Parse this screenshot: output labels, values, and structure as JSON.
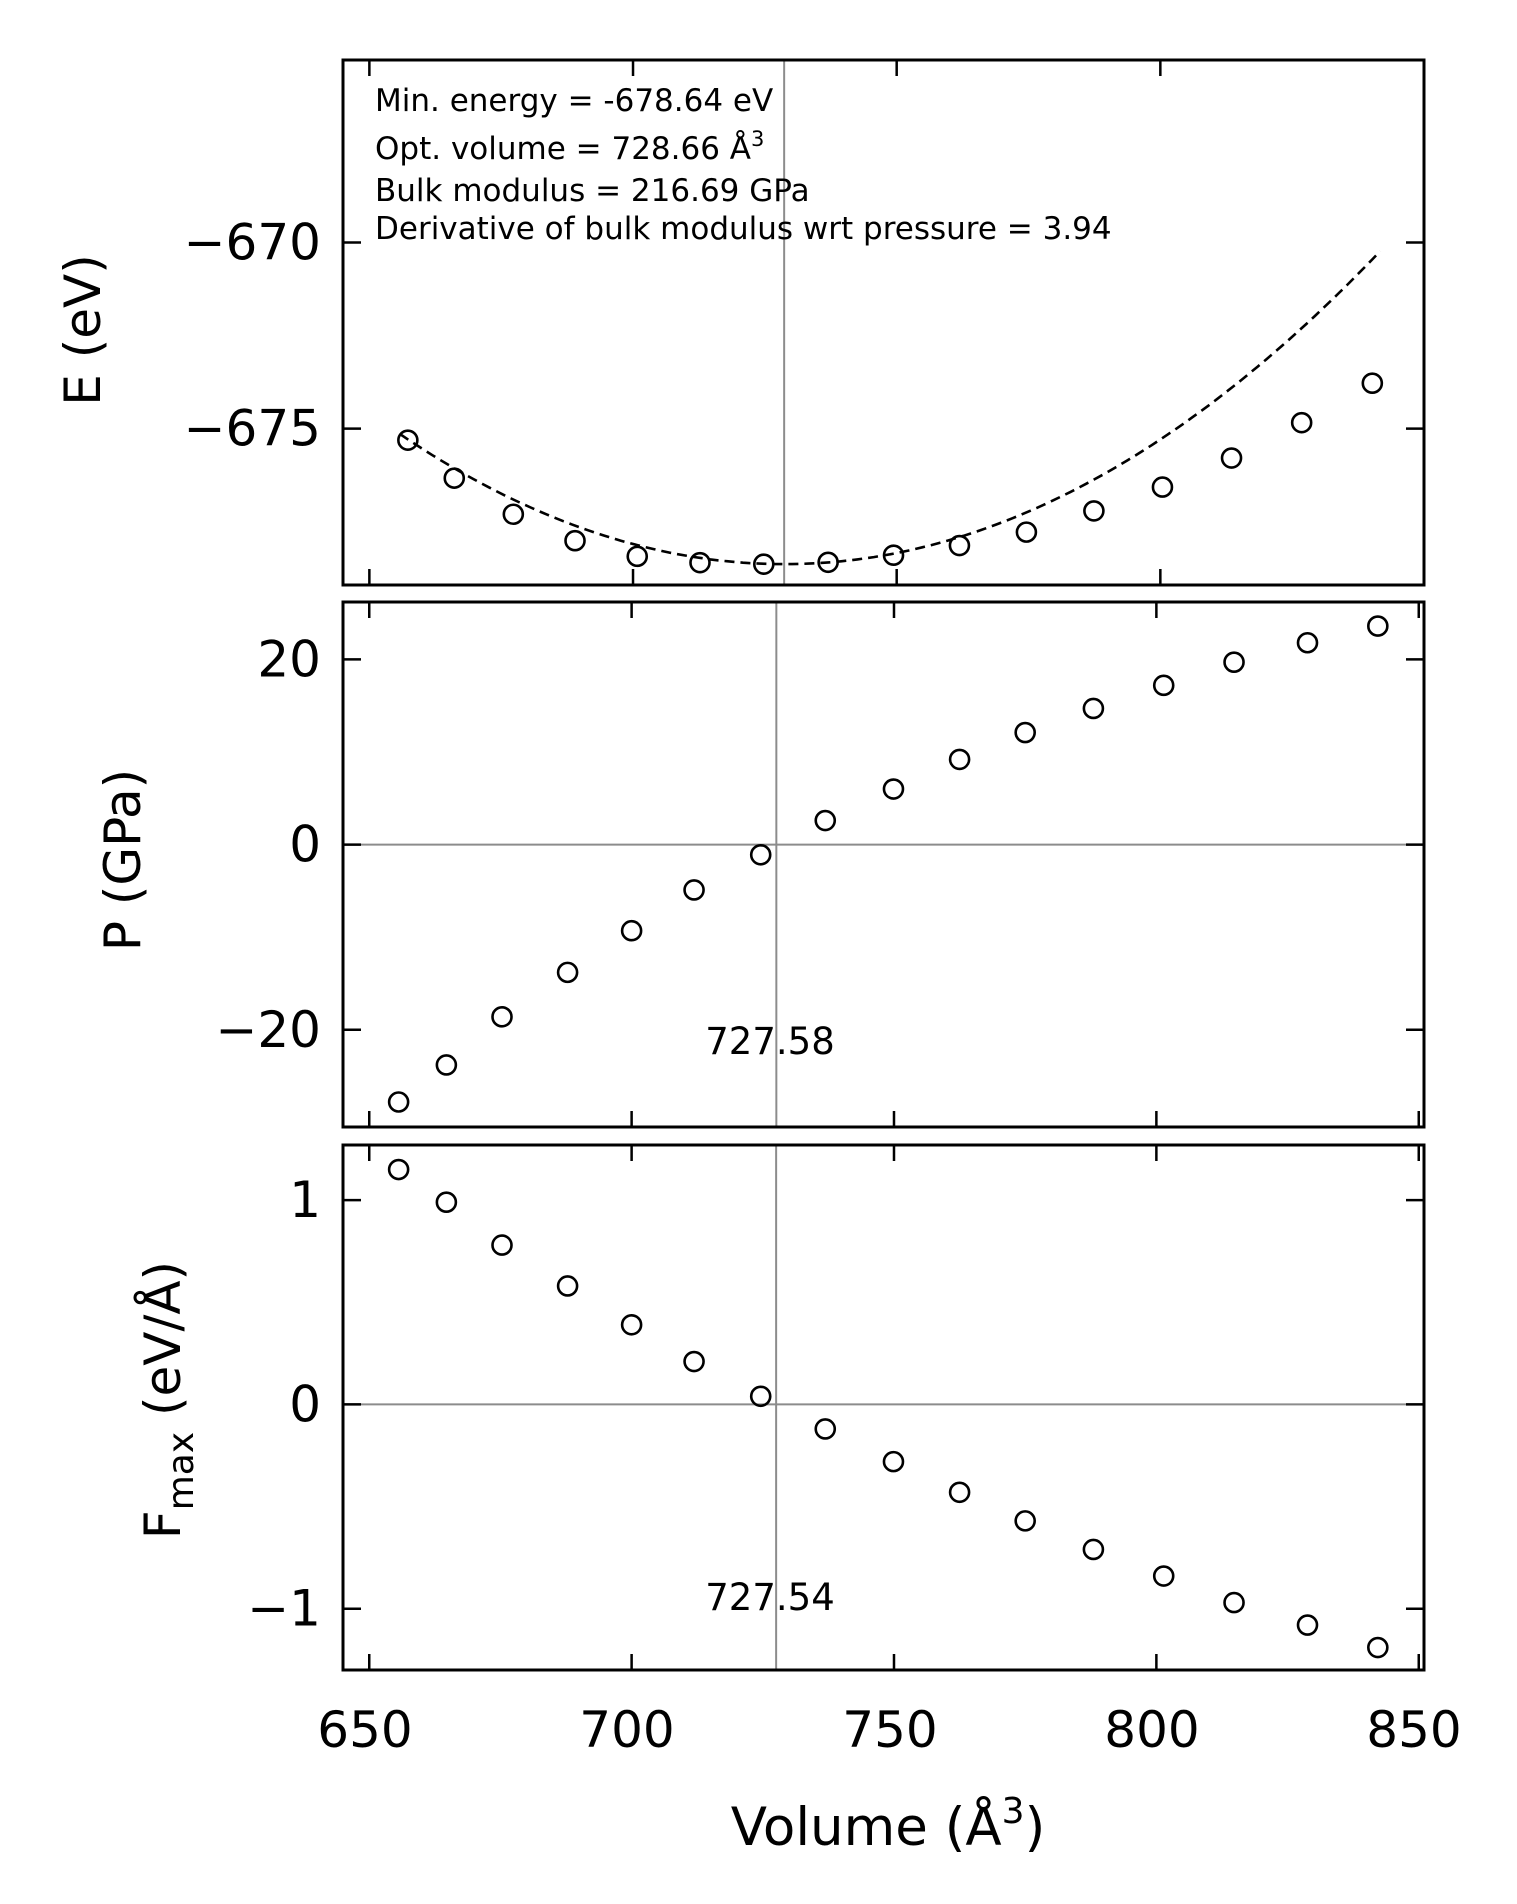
{
  "figure": {
    "xlabel": "Volume (Å",
    "xlabel_sup": "3",
    "xlabel_close": ")",
    "xticks": [
      "650",
      "700",
      "750",
      "800",
      "850"
    ]
  },
  "chart_data": [
    {
      "type": "scatter",
      "panel": "energy",
      "ylabel": "E (eV)",
      "xlim": [
        645,
        850
      ],
      "ylim": [
        -679.2,
        -665.1
      ],
      "yticks": [
        -675,
        -670
      ],
      "ytick_labels": [
        "−675",
        "−670"
      ],
      "marker": "open-circle",
      "reference_vline_x": 728.66,
      "annotations": [
        "Min. energy = -678.64 eV",
        "Opt. volume = 728.66 Å",
        "Bulk modulus = 216.69 GPa",
        "Derivative of bulk modulus wrt pressure = 3.94"
      ],
      "annotation_sup": "3",
      "fit": {
        "style": "dashed",
        "label": "",
        "e0": -678.64,
        "v0": 728.66,
        "curvature": 0.000658
      },
      "series": [
        {
          "x": [
            657.3,
            666.1,
            677.3,
            689.0,
            700.8,
            712.7,
            724.8,
            737.0,
            749.4,
            761.9,
            774.6,
            787.4,
            800.4,
            813.5,
            826.8,
            840.2
          ],
          "y": [
            -675.31,
            -676.33,
            -677.3,
            -678.01,
            -678.43,
            -678.6,
            -678.64,
            -678.59,
            -678.4,
            -678.14,
            -677.78,
            -677.21,
            -676.57,
            -675.79,
            -674.84,
            -673.78
          ]
        }
      ]
    },
    {
      "type": "scatter",
      "panel": "pressure",
      "ylabel": "P (GPa)",
      "xlim": [
        645,
        851
      ],
      "ylim": [
        -30.5,
        26.2
      ],
      "yticks": [
        -20,
        0,
        20
      ],
      "ytick_labels": [
        "−20",
        "0",
        "20"
      ],
      "marker": "open-circle",
      "reference_vline_x": 727.58,
      "reference_hline_y": 0,
      "vline_label": "727.58",
      "series": [
        {
          "x": [
            655.6,
            664.7,
            675.3,
            687.8,
            700.0,
            711.9,
            724.6,
            736.9,
            749.9,
            762.5,
            775.0,
            788.0,
            801.4,
            814.8,
            828.8,
            842.2
          ],
          "y": [
            -27.8,
            -23.8,
            -18.6,
            -13.8,
            -9.3,
            -4.9,
            -1.1,
            2.6,
            6.0,
            9.2,
            12.1,
            14.7,
            17.2,
            19.7,
            21.8,
            23.6
          ]
        }
      ]
    },
    {
      "type": "scatter",
      "panel": "force",
      "ylabel": "F",
      "ylabel_sub": "max",
      "ylabel_tail": " (eV/Å)",
      "xlim": [
        645,
        851
      ],
      "ylim": [
        -1.3,
        1.27
      ],
      "yticks": [
        -1,
        0,
        1
      ],
      "ytick_labels": [
        "−1",
        "0",
        "1"
      ],
      "marker": "open-circle",
      "reference_vline_x": 727.54,
      "reference_hline_y": 0,
      "vline_label": "727.54",
      "series": [
        {
          "x": [
            655.6,
            664.7,
            675.3,
            687.8,
            700.0,
            711.9,
            724.6,
            736.9,
            749.9,
            762.5,
            775.0,
            788.0,
            801.4,
            814.8,
            828.8,
            842.2
          ],
          "y": [
            1.15,
            0.99,
            0.78,
            0.58,
            0.39,
            0.21,
            0.04,
            -0.12,
            -0.28,
            -0.43,
            -0.57,
            -0.71,
            -0.84,
            -0.97,
            -1.08,
            -1.19
          ]
        }
      ]
    }
  ]
}
